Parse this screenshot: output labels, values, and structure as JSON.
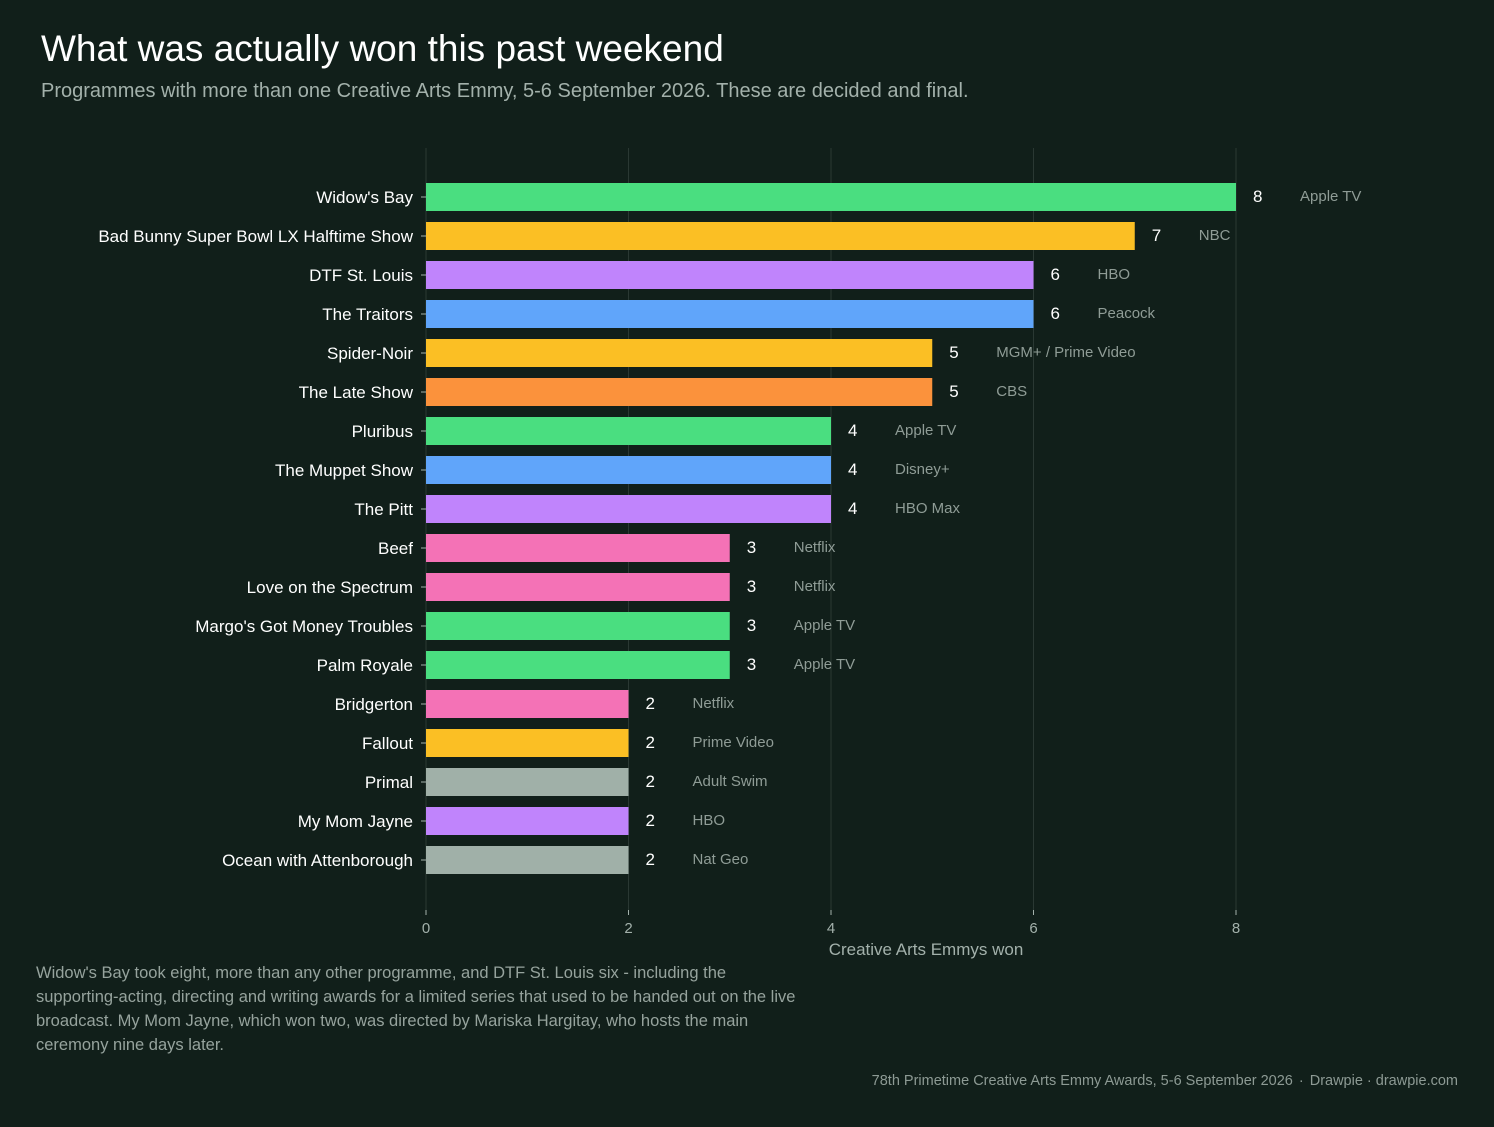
{
  "title": "What was actually won this past weekend",
  "subtitle": "Programmes with more than one Creative Arts Emmy, 5-6 September 2026. These are decided and final.",
  "footnote": "Widow's Bay took eight, more than any other programme, and DTF St. Louis six - including the supporting-acting, directing and writing awards for a limited series that used to be handed out on the live broadcast. My Mom Jayne, which won two, was directed by Mariska Hargitay, who hosts the main ceremony nine days later.",
  "source": {
    "event": "78th Primetime Creative Arts Emmy Awards, 5-6 September 2026",
    "separator": "·",
    "credit": "Drawpie · drawpie.com"
  },
  "colors": {
    "background": "#111f1a",
    "grid": "#2a3833",
    "axis_text": "#a3b1ab",
    "label_text": "#ffffff",
    "network_text": "#8f9c96",
    "Apple TV": "#4ade80",
    "NBC": "#fbbf24",
    "HBO": "#c084fc",
    "Peacock": "#60a5fa",
    "MGM+ / Prime Video": "#fbbf24",
    "CBS": "#fb923c",
    "Disney+": "#60a5fa",
    "HBO Max": "#c084fc",
    "Netflix": "#f472b6",
    "Prime Video": "#fbbf24",
    "Adult Swim": "#a0b0a8",
    "Nat Geo": "#a0b0a8"
  },
  "chart_data": {
    "type": "bar",
    "orientation": "horizontal",
    "xlabel": "Creative Arts Emmys won",
    "ylabel": "",
    "xlim": [
      0,
      8
    ],
    "xticks": [
      0,
      2,
      4,
      6,
      8
    ],
    "grid": true,
    "categories": [
      "Widow's Bay",
      "Bad Bunny Super Bowl LX Halftime Show",
      "DTF St. Louis",
      "The Traitors",
      "Spider-Noir",
      "The Late Show",
      "Pluribus",
      "The Muppet Show",
      "The Pitt",
      "Beef",
      "Love on the Spectrum",
      "Margo's Got Money Troubles",
      "Palm Royale",
      "Bridgerton",
      "Fallout",
      "Primal",
      "My Mom Jayne",
      "Ocean with Attenborough"
    ],
    "values": [
      8,
      7,
      6,
      6,
      5,
      5,
      4,
      4,
      4,
      3,
      3,
      3,
      3,
      2,
      2,
      2,
      2,
      2
    ],
    "networks": [
      "Apple TV",
      "NBC",
      "HBO",
      "Peacock",
      "MGM+ / Prime Video",
      "CBS",
      "Apple TV",
      "Disney+",
      "HBO Max",
      "Netflix",
      "Netflix",
      "Apple TV",
      "Apple TV",
      "Netflix",
      "Prime Video",
      "Adult Swim",
      "HBO",
      "Nat Geo"
    ]
  }
}
